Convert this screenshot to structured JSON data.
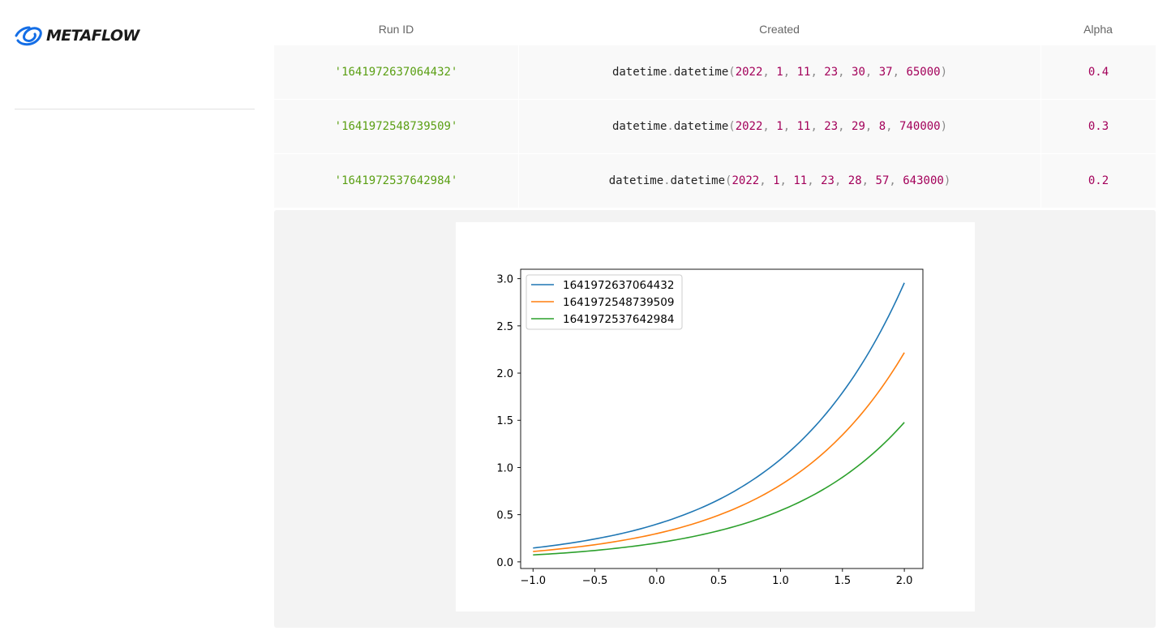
{
  "brand": {
    "name": "METAFLOW",
    "color": "#146ee6",
    "icon": "metaflow-logo-icon"
  },
  "table": {
    "headers": {
      "run_id": "Run ID",
      "created": "Created",
      "alpha": "Alpha"
    },
    "rows": [
      {
        "run_id": "'1641972637064432'",
        "created_prefix": "datetime",
        "created_func": "datetime",
        "created_args": [
          "2022",
          "1",
          "11",
          "23",
          "30",
          "37",
          "65000"
        ],
        "alpha": "0.4"
      },
      {
        "run_id": "'1641972548739509'",
        "created_prefix": "datetime",
        "created_func": "datetime",
        "created_args": [
          "2022",
          "1",
          "11",
          "23",
          "29",
          "8",
          "740000"
        ],
        "alpha": "0.3"
      },
      {
        "run_id": "'1641972537642984'",
        "created_prefix": "datetime",
        "created_func": "datetime",
        "created_args": [
          "2022",
          "1",
          "11",
          "23",
          "28",
          "57",
          "643000"
        ],
        "alpha": "0.2"
      }
    ]
  },
  "chart_data": {
    "type": "line",
    "title": "",
    "xlabel": "",
    "ylabel": "",
    "xlim": [
      -1.1,
      2.15
    ],
    "ylim": [
      -0.07,
      3.1
    ],
    "xticks": [
      -1.0,
      -0.5,
      0.0,
      0.5,
      1.0,
      1.5,
      2.0
    ],
    "xtick_labels": [
      "−1.0",
      "−0.5",
      "0.0",
      "0.5",
      "1.0",
      "1.5",
      "2.0"
    ],
    "yticks": [
      0.0,
      0.5,
      1.0,
      1.5,
      2.0,
      2.5,
      3.0
    ],
    "ytick_labels": [
      "0.0",
      "0.5",
      "1.0",
      "1.5",
      "2.0",
      "2.5",
      "3.0"
    ],
    "grid": false,
    "legend": "top-left",
    "x": [
      -1.0,
      -0.75,
      -0.5,
      -0.25,
      0.0,
      0.25,
      0.5,
      0.75,
      1.0,
      1.25,
      1.5,
      1.75,
      2.0
    ],
    "series": [
      {
        "name": "1641972637064432",
        "color": "#1f77b4",
        "values": [
          0.147,
          0.189,
          0.243,
          0.311,
          0.4,
          0.514,
          0.659,
          0.847,
          1.087,
          1.396,
          1.793,
          2.302,
          2.956
        ]
      },
      {
        "name": "1641972548739509",
        "color": "#ff7f0e",
        "values": [
          0.11,
          0.142,
          0.182,
          0.234,
          0.3,
          0.385,
          0.495,
          0.635,
          0.815,
          1.047,
          1.345,
          1.727,
          2.217
        ]
      },
      {
        "name": "1641972537642984",
        "color": "#2ca02c",
        "values": [
          0.074,
          0.094,
          0.121,
          0.156,
          0.2,
          0.257,
          0.33,
          0.423,
          0.544,
          0.698,
          0.896,
          1.151,
          1.478
        ]
      }
    ]
  }
}
